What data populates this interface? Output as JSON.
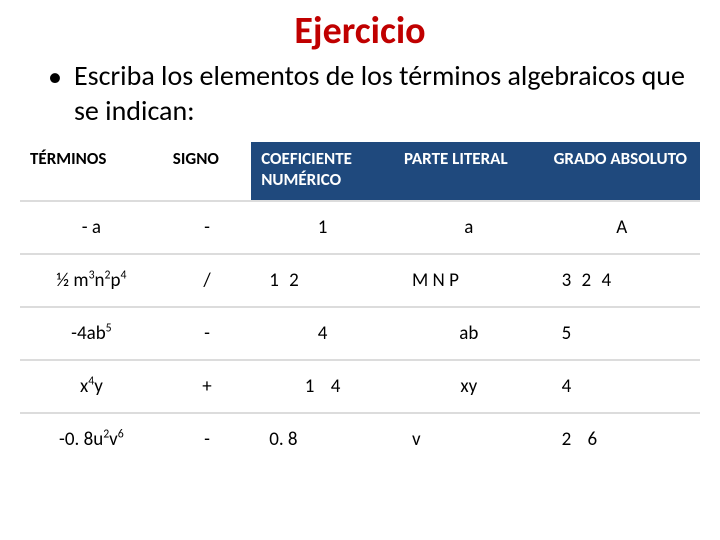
{
  "title": {
    "text": "Ejercicio",
    "color": "#c00000",
    "fontsize": 38
  },
  "bullet": {
    "text": "Escriba los elementos de los términos algebraicos que se indican:",
    "fontsize": 28
  },
  "table": {
    "header_bg_blue": "#1f497d",
    "border_color": "#dcdcdc",
    "columns": [
      {
        "label": "TÉRMINOS",
        "style": "plain"
      },
      {
        "label": "SIGNO",
        "style": "plain"
      },
      {
        "label": "COEFICIENTE NUMÉRICO",
        "style": "blue"
      },
      {
        "label": "PARTE LITERAL",
        "style": "blue"
      },
      {
        "label": "GRADO ABSOLUTO",
        "style": "blue"
      }
    ],
    "rows": [
      {
        "term_html": "- a",
        "signo": "-",
        "coef": "1",
        "coef_align": "center",
        "parte": "a",
        "parte_align": "center",
        "grado": "A",
        "grado_align": "center"
      },
      {
        "term_html": "½ m<sup>3</sup>n<sup>2</sup>p<sup>4</sup>",
        "signo": "/",
        "coef": "1<span class='sp'></span> 2",
        "coef_align": "left",
        "parte": "M N P",
        "parte_align": "left",
        "grado": "3<span class='sp'></span> 2<span class='sp'></span> 4",
        "grado_align": "left"
      },
      {
        "term_html": "-4ab<sup>5</sup>",
        "signo": "-",
        "coef": "4",
        "coef_align": "center",
        "parte": "ab",
        "parte_align": "center",
        "grado": "5",
        "grado_align": "left"
      },
      {
        "term_html": "x<sup>4</sup>y",
        "signo": "+",
        "coef": "1<span class='sp'></span><span class='sp'></span> 4",
        "coef_align": "center",
        "parte": "xy",
        "parte_align": "center",
        "grado": "4",
        "grado_align": "left"
      },
      {
        "term_html": "-0. 8u<sup>2</sup>v<sup>6</sup>",
        "signo": "-",
        "coef": "0. 8",
        "coef_align": "left",
        "parte": "v",
        "parte_align": "left",
        "grado": "2<span class='sp'></span><span class='sp'></span> 6",
        "grado_align": "left"
      }
    ]
  }
}
